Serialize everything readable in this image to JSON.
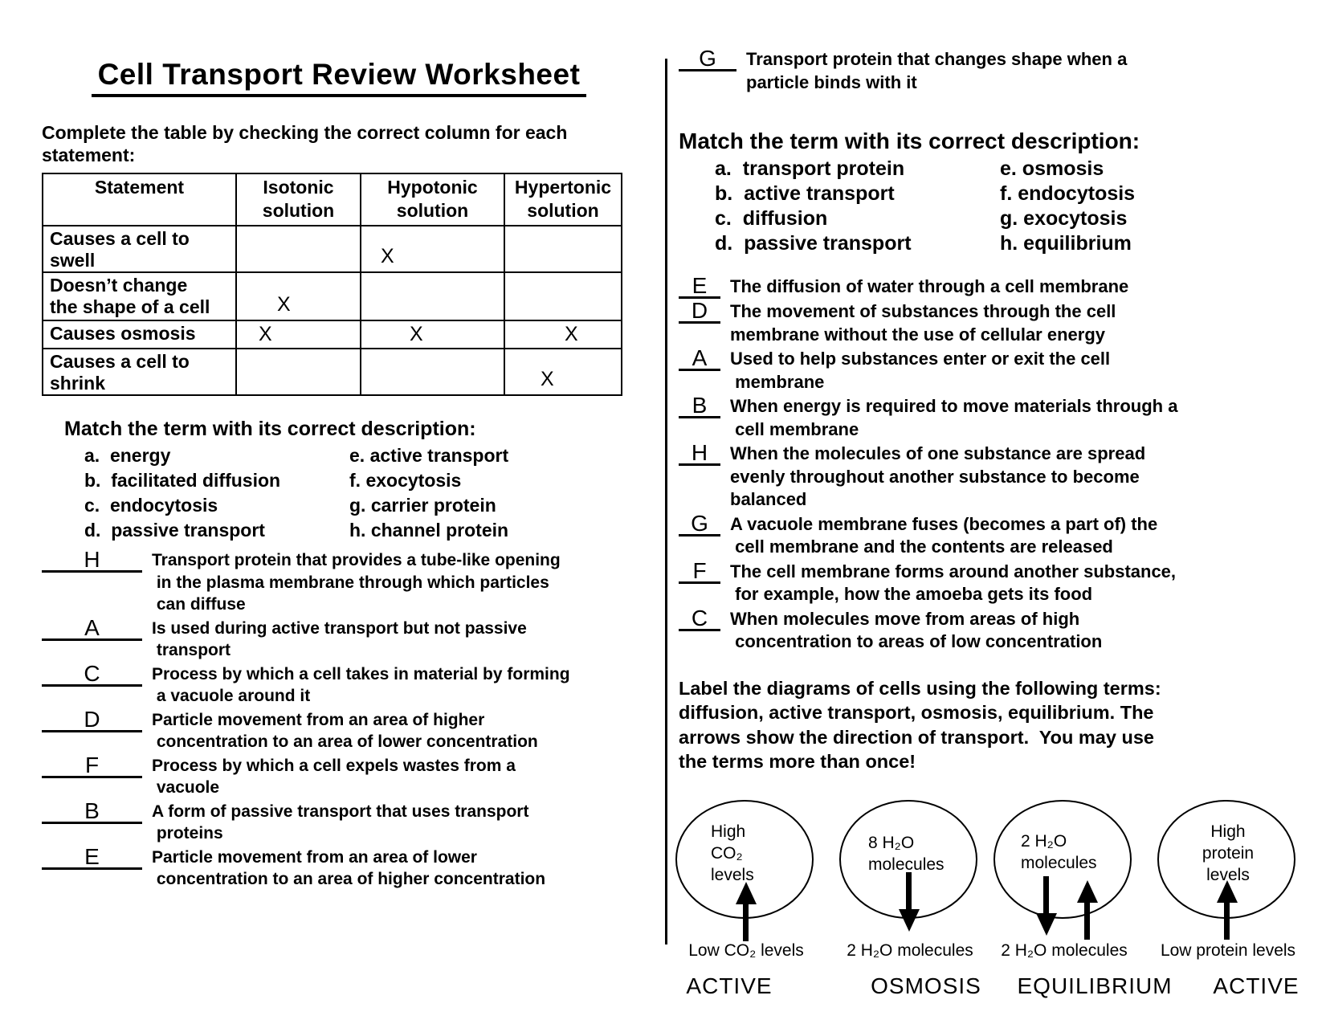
{
  "page": {
    "background": "#ffffff",
    "text_color": "#000000"
  },
  "title": "Cell Transport Review Worksheet",
  "table_section": {
    "instruction": "Complete the table by checking the correct column for each\nstatement:",
    "headers": [
      "Statement",
      "Isotonic\nsolution",
      "Hypotonic\nsolution",
      "Hypertonic\nsolution"
    ],
    "rows": [
      {
        "statement": "Causes a cell to\nswell",
        "isotonic": "",
        "hypotonic": "X",
        "hypertonic": ""
      },
      {
        "statement": "Doesn’t change\nthe shape of a cell",
        "isotonic": "X",
        "hypotonic": "",
        "hypertonic": ""
      },
      {
        "statement": "Causes osmosis",
        "isotonic": "X",
        "hypotonic": "X",
        "hypertonic": "X"
      },
      {
        "statement": "Causes a cell to\nshrink",
        "isotonic": "",
        "hypotonic": "",
        "hypertonic": "X"
      }
    ]
  },
  "match1": {
    "heading": "Match the term with its correct description:",
    "terms_left": [
      "a.  energy",
      "b.  facilitated diffusion",
      "c.  endocytosis",
      "d.  passive transport"
    ],
    "terms_right": [
      "e. active transport",
      "f. exocytosis",
      "g. carrier protein",
      "h. channel protein"
    ],
    "answers": [
      {
        "letter": "H",
        "text": "Transport protein that provides a tube-like opening\n in the plasma membrane through which particles\n can diffuse"
      },
      {
        "letter": "A",
        "text": "Is used during active transport but not passive\n transport"
      },
      {
        "letter": "C",
        "text": "Process by which a cell takes in material by forming\n a vacuole around it"
      },
      {
        "letter": "D",
        "text": "Particle movement from an area of higher\n concentration to an area of lower concentration"
      },
      {
        "letter": "F",
        "text": "Process by which a cell expels wastes from a\n vacuole"
      },
      {
        "letter": "B",
        "text": "A form of passive transport that uses transport\n proteins"
      },
      {
        "letter": "E",
        "text": "Particle movement from an area of lower\n concentration to an area of higher concentration"
      }
    ]
  },
  "g_item": {
    "letter": "G",
    "text": "Transport protein that changes shape when a\nparticle binds with it"
  },
  "match2": {
    "heading": "Match the term with its correct description:",
    "terms_left": [
      "a.  transport protein",
      "b.  active transport",
      "c.  diffusion",
      "d.  passive transport"
    ],
    "terms_right": [
      "e. osmosis",
      "f. endocytosis",
      "g. exocytosis",
      "h. equilibrium"
    ],
    "answers": [
      {
        "letter": "E",
        "text": "The diffusion of water through a cell membrane"
      },
      {
        "letter": "D",
        "text": "The movement of substances through the cell\nmembrane without the use of cellular energy"
      },
      {
        "letter": "A",
        "text": "Used to help substances enter or exit the cell\n membrane"
      },
      {
        "letter": "B",
        "text": "When energy is required to move materials through a\n cell membrane"
      },
      {
        "letter": "H",
        "text": "When the molecules of one substance are spread\nevenly throughout another substance to become\nbalanced"
      },
      {
        "letter": "G",
        "text": "A vacuole membrane fuses (becomes a part of) the\n cell membrane and the contents are released"
      },
      {
        "letter": "F",
        "text": "The cell membrane forms around another substance,\n for example, how the amoeba gets its food"
      },
      {
        "letter": "C",
        "text": "When molecules move from areas of high\n concentration to areas of low concentration"
      }
    ]
  },
  "label_section": {
    "instruction": "Label the diagrams of cells using the following terms:\ndiffusion, active transport, osmosis, equilibrium. The\narrows show the direction of transport.  You may use\nthe terms more than once!",
    "cells": [
      {
        "inside": "High\nCO₂\nlevels",
        "arrows": [
          "up"
        ],
        "below": "Low CO₂ levels",
        "answer": "ACTIVE"
      },
      {
        "inside": "8 H₂O\nmolecules",
        "arrows": [
          "down"
        ],
        "below": "2 H₂O molecules",
        "answer": "OSMOSIS"
      },
      {
        "inside": "2 H₂O\nmolecules",
        "arrows": [
          "down",
          "up"
        ],
        "below": "2 H₂O molecules",
        "answer": "EQUILIBRIUM"
      },
      {
        "inside": "High\nprotein\nlevels",
        "arrows": [
          "up"
        ],
        "below": "Low protein levels",
        "answer": "ACTIVE"
      }
    ]
  }
}
